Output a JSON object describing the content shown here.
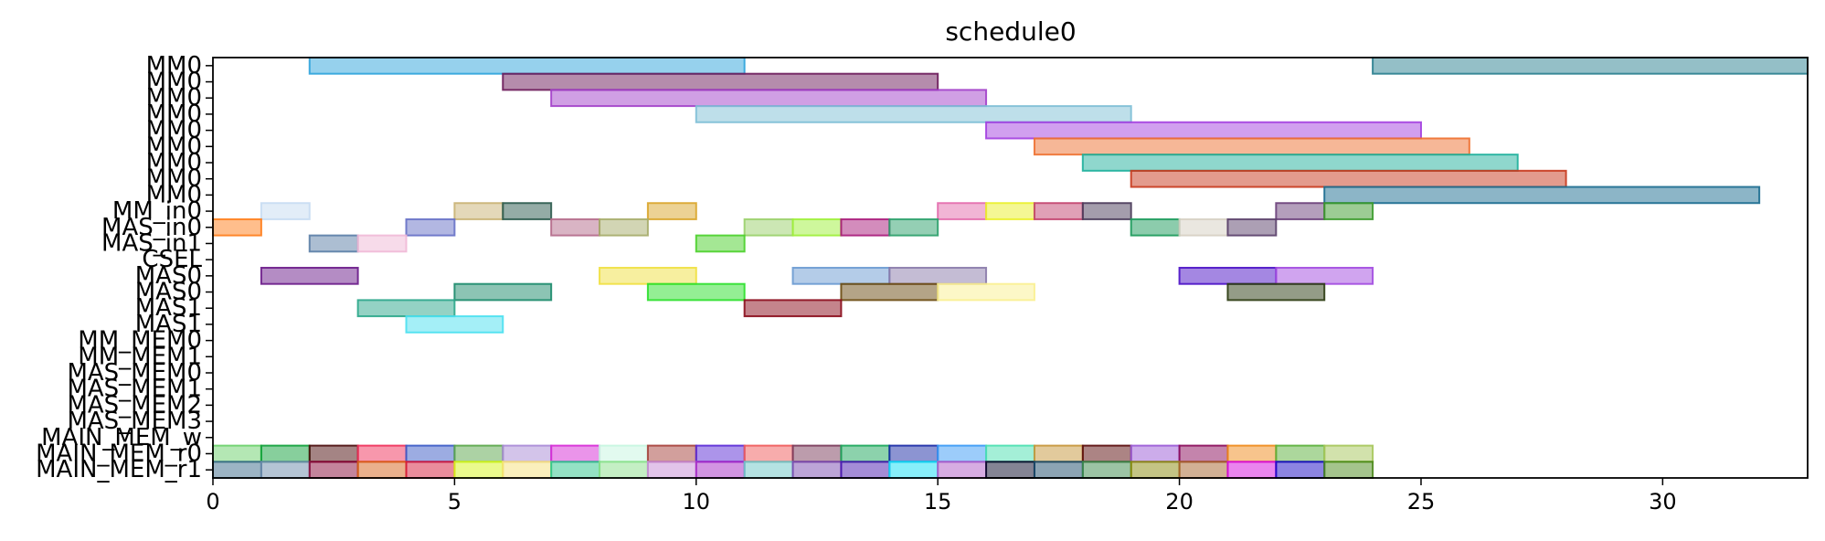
{
  "chart_data": {
    "type": "gantt",
    "title": "schedule0",
    "xlim": [
      0,
      33
    ],
    "x_ticks": [
      0,
      5,
      10,
      15,
      20,
      25,
      30
    ],
    "rows": [
      "MM0",
      "MM0",
      "MM0",
      "MM0",
      "MM0",
      "MM0",
      "MM0",
      "MM0",
      "MM0",
      "MM_in0",
      "MAS_in0",
      "MAS_in1",
      "CSEL",
      "MAS0",
      "MAS0",
      "MAS1",
      "MAS1",
      "MM_MEM0",
      "MM_MEM1",
      "MAS_MEM0",
      "MAS_MEM1",
      "MAS_MEM2",
      "MAS_MEM3",
      "MAIN_MEM_w",
      "MAIN_MEM_r0",
      "MAIN_MEM_r1"
    ],
    "bars": [
      {
        "row": 0,
        "start": 2,
        "end": 11,
        "color": "#2ea3dc"
      },
      {
        "row": 0,
        "start": 24,
        "end": 33,
        "color": "#2a7f8f"
      },
      {
        "row": 1,
        "start": 6,
        "end": 15,
        "color": "#6b1a5a"
      },
      {
        "row": 2,
        "start": 7,
        "end": 16,
        "color": "#a23fc9"
      },
      {
        "row": 3,
        "start": 10,
        "end": 19,
        "color": "#7ebfd6"
      },
      {
        "row": 4,
        "start": 16,
        "end": 25,
        "color": "#a33fe0"
      },
      {
        "row": 5,
        "start": 17,
        "end": 26,
        "color": "#ee7030"
      },
      {
        "row": 6,
        "start": 18,
        "end": 27,
        "color": "#1fb09c"
      },
      {
        "row": 7,
        "start": 19,
        "end": 28,
        "color": "#c8381c"
      },
      {
        "row": 8,
        "start": 23,
        "end": 32,
        "color": "#1a6b8f"
      },
      {
        "row": 9,
        "start": 1,
        "end": 2,
        "color": "#c6dcf2"
      },
      {
        "row": 9,
        "start": 5,
        "end": 6,
        "color": "#c9b274"
      },
      {
        "row": 9,
        "start": 6,
        "end": 7,
        "color": "#2a5a4d"
      },
      {
        "row": 9,
        "start": 9,
        "end": 10,
        "color": "#d9a52a"
      },
      {
        "row": 9,
        "start": 15,
        "end": 16,
        "color": "#e36bac"
      },
      {
        "row": 9,
        "start": 16,
        "end": 17,
        "color": "#eaf02a"
      },
      {
        "row": 9,
        "start": 17,
        "end": 18,
        "color": "#c2426e"
      },
      {
        "row": 9,
        "start": 18,
        "end": 19,
        "color": "#4a3b5a"
      },
      {
        "row": 9,
        "start": 22,
        "end": 23,
        "color": "#6a3f7a"
      },
      {
        "row": 9,
        "start": 23,
        "end": 24,
        "color": "#3a9a2a"
      },
      {
        "row": 10,
        "start": 0,
        "end": 1,
        "color": "#ff7d1a"
      },
      {
        "row": 10,
        "start": 4,
        "end": 5,
        "color": "#6670c6"
      },
      {
        "row": 10,
        "start": 7,
        "end": 8,
        "color": "#b46a8a"
      },
      {
        "row": 10,
        "start": 8,
        "end": 9,
        "color": "#a6ac6a"
      },
      {
        "row": 10,
        "start": 11,
        "end": 12,
        "color": "#9ad06a"
      },
      {
        "row": 10,
        "start": 12,
        "end": 13,
        "color": "#9ef03a"
      },
      {
        "row": 10,
        "start": 13,
        "end": 14,
        "color": "#a81a7a"
      },
      {
        "row": 10,
        "start": 14,
        "end": 15,
        "color": "#2aa06a"
      },
      {
        "row": 10,
        "start": 19,
        "end": 20,
        "color": "#1a9a5a"
      },
      {
        "row": 10,
        "start": 20,
        "end": 21,
        "color": "#d6cfc2"
      },
      {
        "row": 10,
        "start": 21,
        "end": 22,
        "color": "#5a3f6a"
      },
      {
        "row": 11,
        "start": 2,
        "end": 3,
        "color": "#5a7ea6"
      },
      {
        "row": 11,
        "start": 3,
        "end": 4,
        "color": "#f0b8d6"
      },
      {
        "row": 11,
        "start": 10,
        "end": 11,
        "color": "#4ad02a"
      },
      {
        "row": 13,
        "start": 1,
        "end": 3,
        "color": "#6a1a8a"
      },
      {
        "row": 13,
        "start": 8,
        "end": 10,
        "color": "#f0e040"
      },
      {
        "row": 13,
        "start": 12,
        "end": 14,
        "color": "#6a9ad2"
      },
      {
        "row": 13,
        "start": 14,
        "end": 16,
        "color": "#8a7aaa"
      },
      {
        "row": 13,
        "start": 20,
        "end": 22,
        "color": "#4a10c6"
      },
      {
        "row": 13,
        "start": 22,
        "end": 24,
        "color": "#a24ae0"
      },
      {
        "row": 14,
        "start": 5,
        "end": 7,
        "color": "#1a8a6a"
      },
      {
        "row": 14,
        "start": 9,
        "end": 11,
        "color": "#2ae02a"
      },
      {
        "row": 14,
        "start": 13,
        "end": 15,
        "color": "#6a4a10"
      },
      {
        "row": 14,
        "start": 15,
        "end": 17,
        "color": "#faf090"
      },
      {
        "row": 14,
        "start": 21,
        "end": 23,
        "color": "#2a3a10"
      },
      {
        "row": 15,
        "start": 3,
        "end": 5,
        "color": "#2aa68a"
      },
      {
        "row": 15,
        "start": 11,
        "end": 13,
        "color": "#8a0a1a"
      },
      {
        "row": 16,
        "start": 4,
        "end": 6,
        "color": "#4ae0f0"
      },
      {
        "row": 24,
        "start": 0,
        "end": 1,
        "color": "#6ad06a"
      },
      {
        "row": 24,
        "start": 1,
        "end": 2,
        "color": "#10a03a"
      },
      {
        "row": 24,
        "start": 2,
        "end": 3,
        "color": "#4a0a0a"
      },
      {
        "row": 24,
        "start": 3,
        "end": 4,
        "color": "#f0305a"
      },
      {
        "row": 24,
        "start": 4,
        "end": 5,
        "color": "#3a5ac6"
      },
      {
        "row": 24,
        "start": 5,
        "end": 6,
        "color": "#5aa64a"
      },
      {
        "row": 24,
        "start": 6,
        "end": 7,
        "color": "#a88ad6"
      },
      {
        "row": 24,
        "start": 7,
        "end": 8,
        "color": "#d62ad6"
      },
      {
        "row": 24,
        "start": 8,
        "end": 9,
        "color": "#c6f6e0"
      },
      {
        "row": 24,
        "start": 9,
        "end": 10,
        "color": "#a6403a"
      },
      {
        "row": 24,
        "start": 10,
        "end": 11,
        "color": "#5a2ad6"
      },
      {
        "row": 24,
        "start": 11,
        "end": 12,
        "color": "#f05a5a"
      },
      {
        "row": 24,
        "start": 12,
        "end": 13,
        "color": "#7a3a5a"
      },
      {
        "row": 24,
        "start": 13,
        "end": 14,
        "color": "#1aa65a"
      },
      {
        "row": 24,
        "start": 14,
        "end": 15,
        "color": "#1a2aa6"
      },
      {
        "row": 24,
        "start": 15,
        "end": 16,
        "color": "#3a9af6"
      },
      {
        "row": 24,
        "start": 16,
        "end": 17,
        "color": "#4ae0b0"
      },
      {
        "row": 24,
        "start": 17,
        "end": 18,
        "color": "#c6963a"
      },
      {
        "row": 24,
        "start": 18,
        "end": 19,
        "color": "#5a0a0a"
      },
      {
        "row": 24,
        "start": 19,
        "end": 20,
        "color": "#9a5ad6"
      },
      {
        "row": 24,
        "start": 20,
        "end": 21,
        "color": "#8a0a5a"
      },
      {
        "row": 24,
        "start": 21,
        "end": 22,
        "color": "#f08a1a"
      },
      {
        "row": 24,
        "start": 22,
        "end": 23,
        "color": "#5ab03a"
      },
      {
        "row": 24,
        "start": 23,
        "end": 24,
        "color": "#a6c65a"
      },
      {
        "row": 25,
        "start": 0,
        "end": 1,
        "color": "#3a6a8a"
      },
      {
        "row": 25,
        "start": 1,
        "end": 2,
        "color": "#6a8aaa"
      },
      {
        "row": 25,
        "start": 2,
        "end": 3,
        "color": "#8a0a3a"
      },
      {
        "row": 25,
        "start": 3,
        "end": 4,
        "color": "#d6621a"
      },
      {
        "row": 25,
        "start": 4,
        "end": 5,
        "color": "#d61a3a"
      },
      {
        "row": 25,
        "start": 5,
        "end": 6,
        "color": "#d6f61a"
      },
      {
        "row": 25,
        "start": 6,
        "end": 7,
        "color": "#f6e07a"
      },
      {
        "row": 25,
        "start": 7,
        "end": 8,
        "color": "#2ac68a"
      },
      {
        "row": 25,
        "start": 8,
        "end": 9,
        "color": "#8ae08a"
      },
      {
        "row": 25,
        "start": 9,
        "end": 10,
        "color": "#c68ad6"
      },
      {
        "row": 25,
        "start": 10,
        "end": 11,
        "color": "#a62ac6"
      },
      {
        "row": 25,
        "start": 11,
        "end": 12,
        "color": "#6ac6c6"
      },
      {
        "row": 25,
        "start": 12,
        "end": 13,
        "color": "#7a4ab0"
      },
      {
        "row": 25,
        "start": 13,
        "end": 14,
        "color": "#4a1ab0"
      },
      {
        "row": 25,
        "start": 14,
        "end": 15,
        "color": "#10e0f6"
      },
      {
        "row": 25,
        "start": 15,
        "end": 16,
        "color": "#b05ac6"
      },
      {
        "row": 25,
        "start": 16,
        "end": 17,
        "color": "#0a0a2a"
      },
      {
        "row": 25,
        "start": 17,
        "end": 18,
        "color": "#1a4a6a"
      },
      {
        "row": 25,
        "start": 18,
        "end": 19,
        "color": "#3a8a4a"
      },
      {
        "row": 25,
        "start": 19,
        "end": 20,
        "color": "#8a8a0a"
      },
      {
        "row": 25,
        "start": 20,
        "end": 21,
        "color": "#a6622a"
      },
      {
        "row": 25,
        "start": 21,
        "end": 22,
        "color": "#d60ae0"
      },
      {
        "row": 25,
        "start": 22,
        "end": 23,
        "color": "#1a0ac6"
      },
      {
        "row": 25,
        "start": 23,
        "end": 24,
        "color": "#4a8a1a"
      }
    ]
  }
}
